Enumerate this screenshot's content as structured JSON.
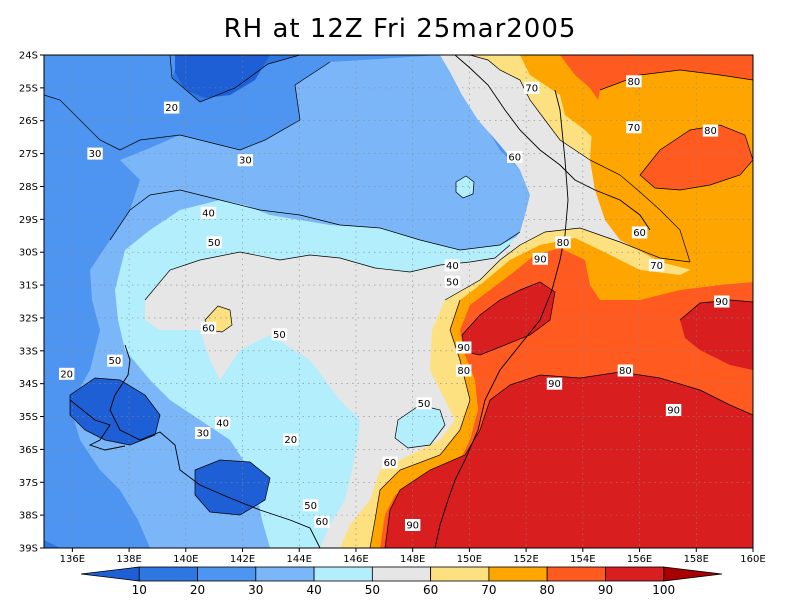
{
  "chart_data": {
    "type": "heatmap",
    "title": "RH at 12Z Fri 25mar2005",
    "variable": "Relative humidity (%)",
    "x_ticks": [
      "136E",
      "138E",
      "140E",
      "142E",
      "144E",
      "146E",
      "148E",
      "150E",
      "152E",
      "154E",
      "156E",
      "158E",
      "160E"
    ],
    "y_ticks": [
      "24S",
      "25S",
      "26S",
      "27S",
      "28S",
      "29S",
      "30S",
      "31S",
      "32S",
      "33S",
      "34S",
      "35S",
      "36S",
      "37S",
      "38S",
      "39S"
    ],
    "xlim": [
      135.0,
      160.0
    ],
    "ylim": [
      -39.0,
      -24.0
    ],
    "grid": true,
    "levels": [
      10,
      20,
      30,
      40,
      50,
      60,
      70,
      80,
      90,
      100
    ],
    "level_labels": [
      "10",
      "20",
      "30",
      "40",
      "50",
      "60",
      "70",
      "80",
      "90",
      "100"
    ],
    "colors": [
      "#1e5fd6",
      "#2f77e0",
      "#4d95f0",
      "#7ab6f8",
      "#b3eefc",
      "#e6e6e6",
      "#fde07f",
      "#ffa500",
      "#ff5a1f",
      "#d81e1e",
      "#a80000"
    ],
    "contour_labels": [
      {
        "text": "80",
        "lon": 155.8,
        "lat": -24.8
      },
      {
        "text": "70",
        "lon": 152.2,
        "lat": -25.0
      },
      {
        "text": "70",
        "lon": 155.8,
        "lat": -26.2
      },
      {
        "text": "80",
        "lon": 158.5,
        "lat": -26.3
      },
      {
        "text": "20",
        "lon": 139.5,
        "lat": -25.6
      },
      {
        "text": "30",
        "lon": 136.8,
        "lat": -27.0
      },
      {
        "text": "30",
        "lon": 142.1,
        "lat": -27.2
      },
      {
        "text": "60",
        "lon": 151.6,
        "lat": -27.1
      },
      {
        "text": "40",
        "lon": 140.8,
        "lat": -28.8
      },
      {
        "text": "60",
        "lon": 156.0,
        "lat": -29.4
      },
      {
        "text": "50",
        "lon": 141.0,
        "lat": -29.7
      },
      {
        "text": "80",
        "lon": 153.3,
        "lat": -29.7
      },
      {
        "text": "40",
        "lon": 149.4,
        "lat": -30.4
      },
      {
        "text": "90",
        "lon": 152.5,
        "lat": -30.2
      },
      {
        "text": "70",
        "lon": 156.6,
        "lat": -30.4
      },
      {
        "text": "50",
        "lon": 149.4,
        "lat": -30.9
      },
      {
        "text": "90",
        "lon": 158.9,
        "lat": -31.5
      },
      {
        "text": "60",
        "lon": 140.8,
        "lat": -32.3
      },
      {
        "text": "50",
        "lon": 143.3,
        "lat": -32.5
      },
      {
        "text": "90",
        "lon": 149.8,
        "lat": -32.9
      },
      {
        "text": "50",
        "lon": 137.5,
        "lat": -33.3
      },
      {
        "text": "80",
        "lon": 149.8,
        "lat": -33.6
      },
      {
        "text": "80",
        "lon": 155.5,
        "lat": -33.6
      },
      {
        "text": "20",
        "lon": 135.8,
        "lat": -33.7
      },
      {
        "text": "90",
        "lon": 153.0,
        "lat": -34.0
      },
      {
        "text": "50",
        "lon": 148.4,
        "lat": -34.6
      },
      {
        "text": "90",
        "lon": 157.2,
        "lat": -34.8
      },
      {
        "text": "40",
        "lon": 141.3,
        "lat": -35.2
      },
      {
        "text": "30",
        "lon": 140.6,
        "lat": -35.5
      },
      {
        "text": "20",
        "lon": 143.7,
        "lat": -35.7
      },
      {
        "text": "60",
        "lon": 147.2,
        "lat": -36.4
      },
      {
        "text": "50",
        "lon": 144.4,
        "lat": -37.7
      },
      {
        "text": "60",
        "lon": 144.8,
        "lat": -38.2
      },
      {
        "text": "90",
        "lon": 148.0,
        "lat": -38.3
      }
    ]
  }
}
